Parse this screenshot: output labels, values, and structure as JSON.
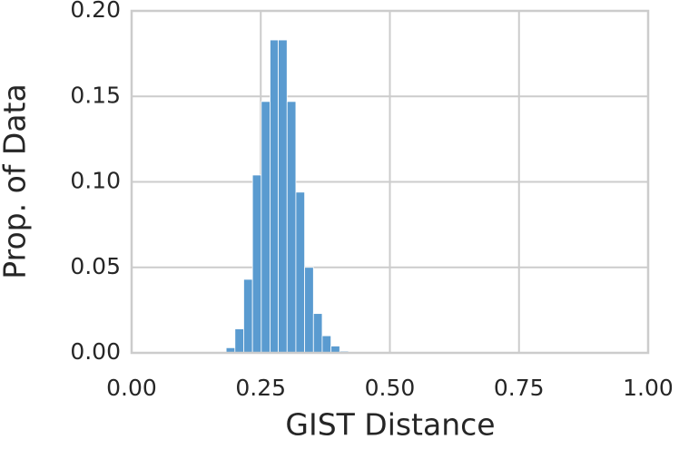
{
  "chart_data": {
    "type": "histogram",
    "xlabel": "GIST Distance",
    "ylabel": "Prop. of Data",
    "bins": [
      0.183,
      0.2,
      0.217,
      0.234,
      0.251,
      0.268,
      0.284,
      0.301,
      0.318,
      0.335,
      0.352,
      0.369,
      0.386,
      0.403,
      0.42
    ],
    "values": [
      0.003,
      0.014,
      0.043,
      0.104,
      0.147,
      0.183,
      0.183,
      0.147,
      0.094,
      0.05,
      0.023,
      0.01,
      0.004,
      0.001
    ],
    "color": "#5a9bd0",
    "xlim": [
      0,
      1
    ],
    "xticks": [
      {
        "value": 0,
        "label": "0.00"
      },
      {
        "value": 0.25,
        "label": "0.25"
      },
      {
        "value": 0.5,
        "label": "0.50"
      },
      {
        "value": 0.75,
        "label": "0.75"
      },
      {
        "value": 1,
        "label": "1.00"
      }
    ],
    "ylim": [
      0,
      0.2
    ],
    "yticks": [
      {
        "value": 0,
        "label": "0.00"
      },
      {
        "value": 0.05,
        "label": "0.05"
      },
      {
        "value": 0.1,
        "label": "0.10"
      },
      {
        "value": 0.15,
        "label": "0.15"
      },
      {
        "value": 0.2,
        "label": "0.20"
      }
    ],
    "grid": true
  }
}
